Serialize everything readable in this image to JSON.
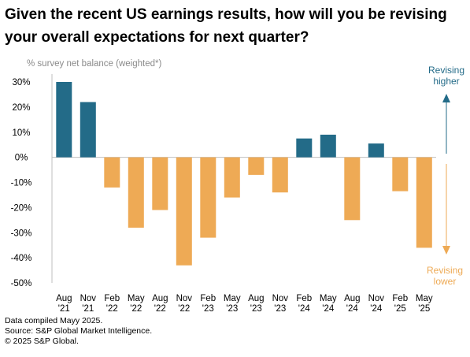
{
  "title": "Given the recent US earnings results, how will you be revising your overall expectations for next quarter?",
  "chart_data": {
    "type": "bar",
    "ylabel": "% survey net balance (weighted*)",
    "ylim": [
      -50,
      30
    ],
    "yticks": [
      30,
      20,
      10,
      0,
      -10,
      -20,
      -30,
      -40,
      -50
    ],
    "ytick_labels": [
      "30%",
      "20%",
      "10%",
      "0%",
      "-10%",
      "-20%",
      "-30%",
      "-40%",
      "-50%"
    ],
    "categories": [
      [
        "Aug",
        "'21"
      ],
      [
        "Nov",
        "'21"
      ],
      [
        "Feb",
        "'22"
      ],
      [
        "May",
        "'22"
      ],
      [
        "Aug",
        "'22"
      ],
      [
        "Nov",
        "'22"
      ],
      [
        "Feb",
        "'23"
      ],
      [
        "May",
        "'23"
      ],
      [
        "Aug",
        "'23"
      ],
      [
        "Nov",
        "'23"
      ],
      [
        "Feb",
        "'24"
      ],
      [
        "May",
        "'24"
      ],
      [
        "Aug",
        "'24"
      ],
      [
        "Nov",
        "'24"
      ],
      [
        "Feb",
        "'25"
      ],
      [
        "May",
        "'25"
      ]
    ],
    "values": [
      30,
      22,
      -12,
      -28,
      -21,
      -43,
      -32,
      -16,
      -7,
      -14,
      7.5,
      9,
      -25,
      5.5,
      -13.5,
      -36
    ],
    "colors": {
      "positive": "#236b88",
      "negative": "#eeaa55"
    },
    "annotations": {
      "higher": {
        "lines": [
          "Revising",
          "higher"
        ],
        "color": "#236b88"
      },
      "lower": {
        "lines": [
          "Revising",
          "lower"
        ],
        "color": "#eeaa55"
      }
    }
  },
  "source": {
    "line1": "Data compiled Mayy 2025.",
    "line2": "Source: S&P Global Market Intelligence.",
    "line3": "© 2025 S&P Global."
  }
}
